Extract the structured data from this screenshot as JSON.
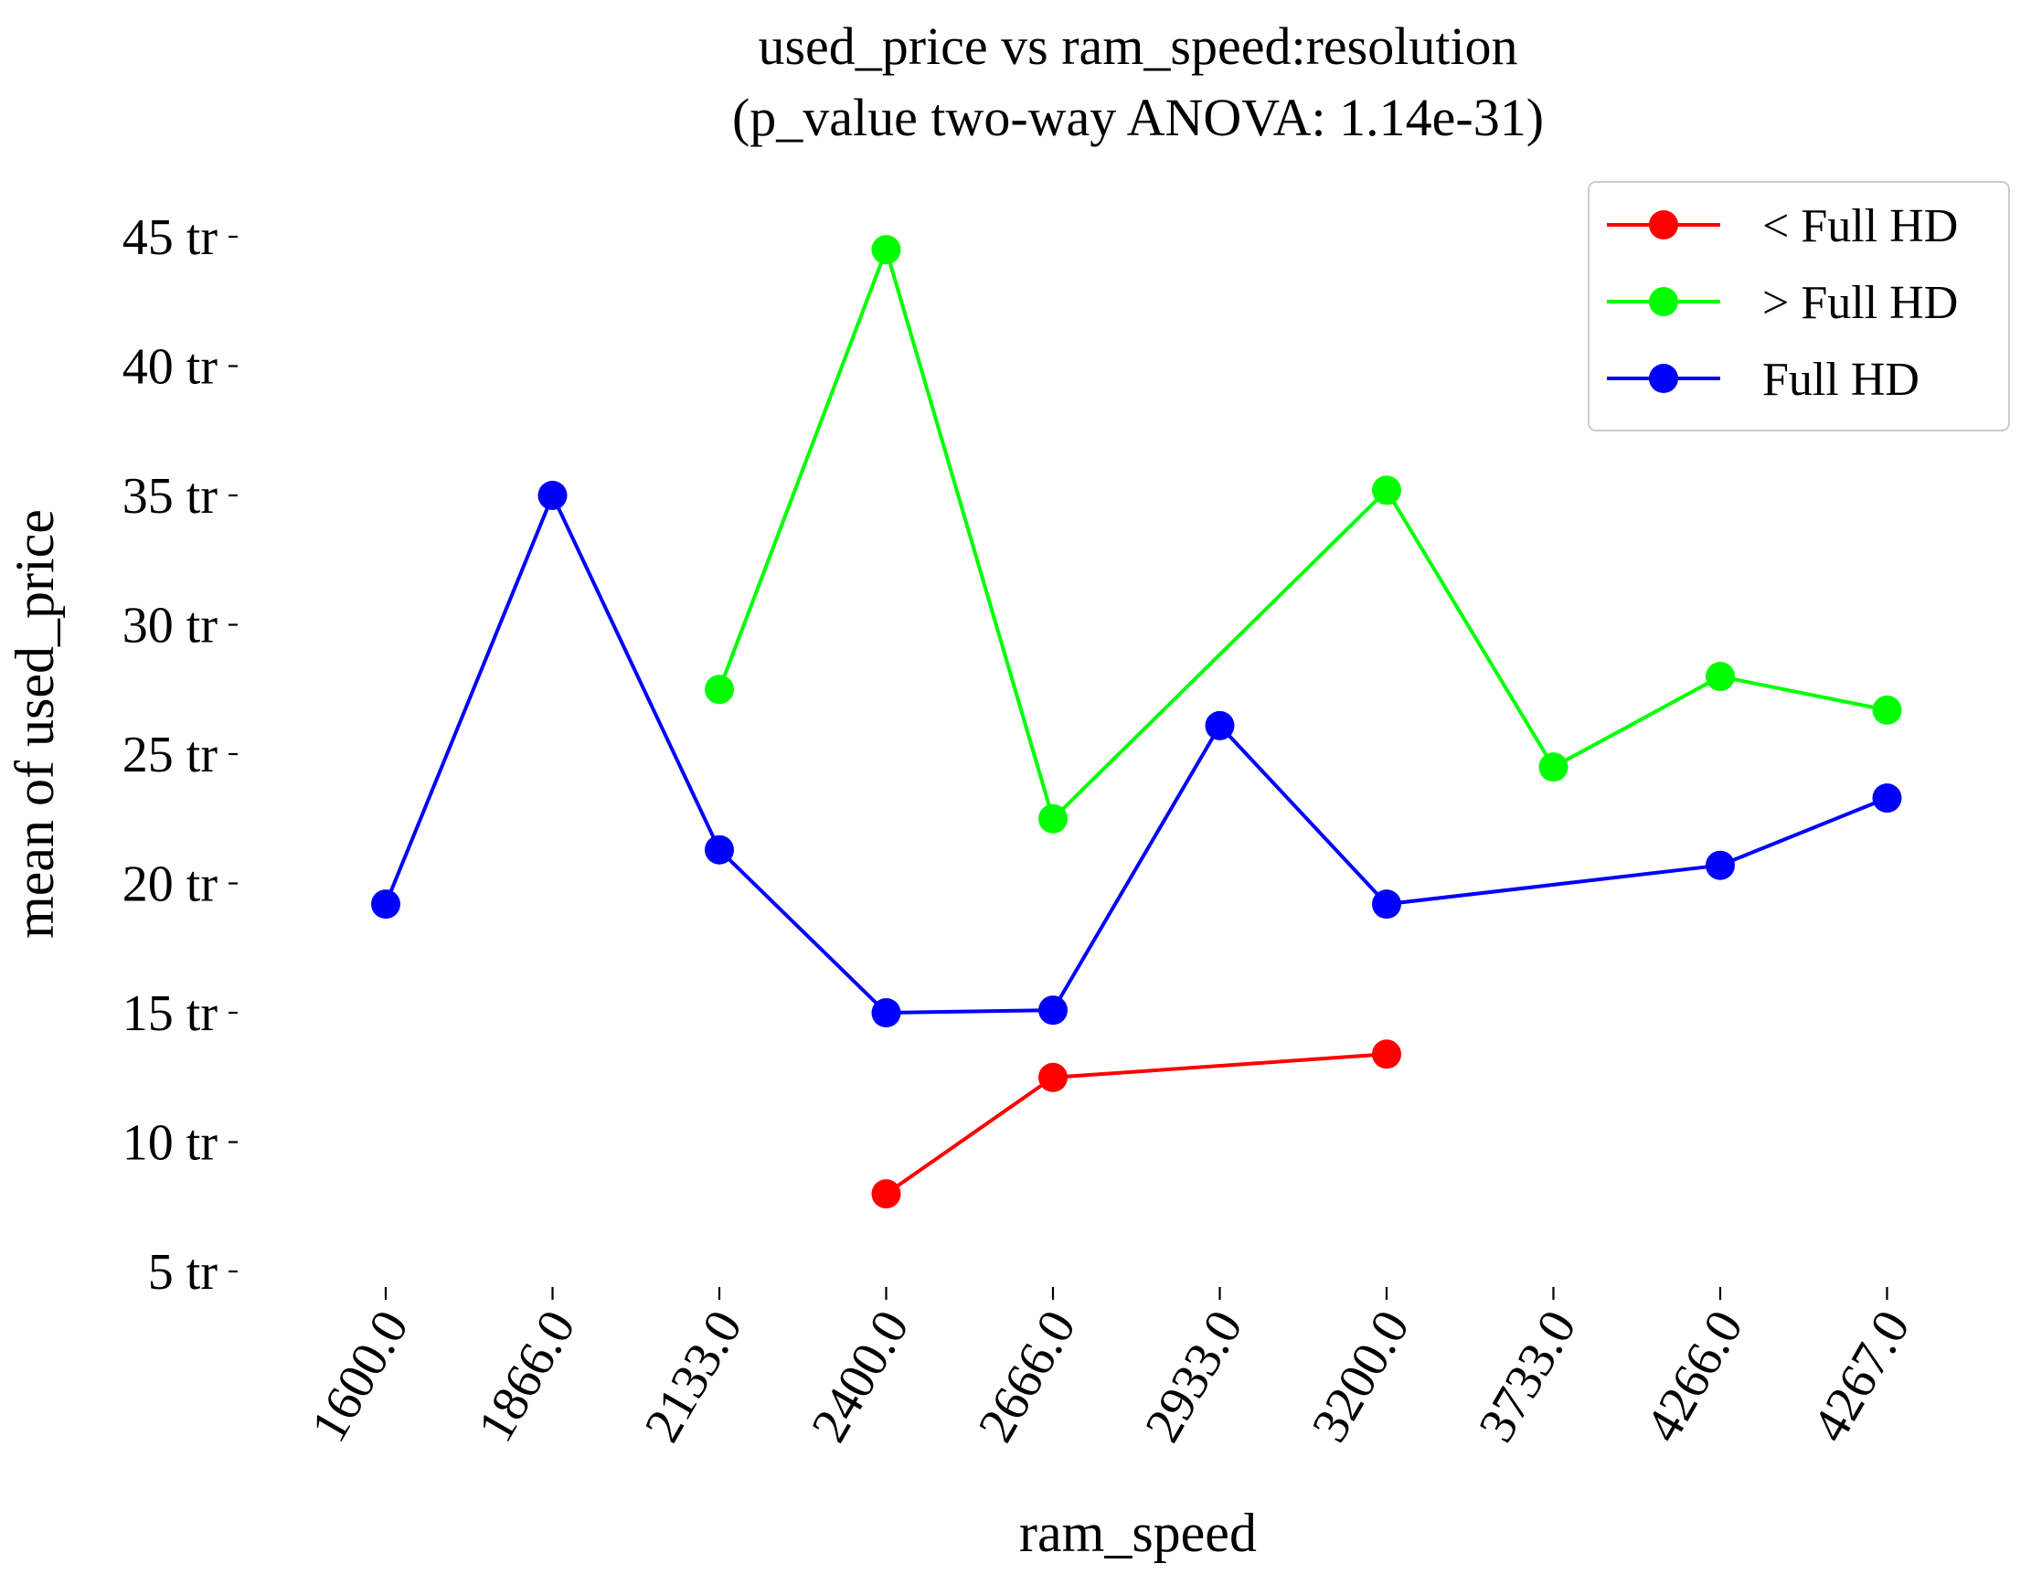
{
  "chart_data": {
    "type": "line",
    "title_line1": "used_price vs ram_speed:resolution",
    "title_line2": "(p_value two-way ANOVA: 1.14e-31)",
    "xlabel": "ram_speed",
    "ylabel": "mean of used_price",
    "categories": [
      "1600.0",
      "1866.0",
      "2133.0",
      "2400.0",
      "2666.0",
      "2933.0",
      "3200.0",
      "3733.0",
      "4266.0",
      "4267.0"
    ],
    "y_ticks": [
      5,
      10,
      15,
      20,
      25,
      30,
      35,
      40,
      45
    ],
    "y_tick_labels": [
      "5 tr",
      "10 tr",
      "15 tr",
      "20 tr",
      "25 tr",
      "30 tr",
      "35 tr",
      "40 tr",
      "45 tr"
    ],
    "ylim": [
      5,
      45
    ],
    "grid": false,
    "legend_position": "top-right",
    "series": [
      {
        "name": "< Full HD",
        "color": "#ff0000",
        "points": [
          {
            "category": "2400.0",
            "value": 8.0
          },
          {
            "category": "2666.0",
            "value": 12.5
          },
          {
            "category": "3200.0",
            "value": 13.4
          }
        ]
      },
      {
        "name": "> Full HD",
        "color": "#00ff00",
        "points": [
          {
            "category": "2133.0",
            "value": 27.5
          },
          {
            "category": "2400.0",
            "value": 44.5
          },
          {
            "category": "2666.0",
            "value": 22.5
          },
          {
            "category": "3200.0",
            "value": 35.2
          },
          {
            "category": "3733.0",
            "value": 24.5
          },
          {
            "category": "4266.0",
            "value": 28.0
          },
          {
            "category": "4267.0",
            "value": 26.7
          }
        ]
      },
      {
        "name": "Full HD",
        "color": "#0000ff",
        "points": [
          {
            "category": "1600.0",
            "value": 19.2
          },
          {
            "category": "1866.0",
            "value": 35.0
          },
          {
            "category": "2133.0",
            "value": 21.3
          },
          {
            "category": "2400.0",
            "value": 15.0
          },
          {
            "category": "2666.0",
            "value": 15.1
          },
          {
            "category": "2933.0",
            "value": 26.1
          },
          {
            "category": "3200.0",
            "value": 19.2
          },
          {
            "category": "4266.0",
            "value": 20.7
          },
          {
            "category": "4267.0",
            "value": 23.3
          }
        ]
      }
    ]
  }
}
